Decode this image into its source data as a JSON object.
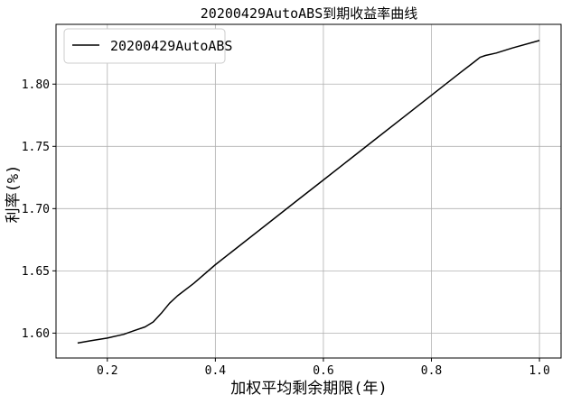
{
  "chart_data": {
    "type": "line",
    "title": "20200429AutoABS到期收益率曲线",
    "xlabel": "加权平均剩余期限(年)",
    "ylabel": "利率(%)",
    "xlim": [
      0.105,
      1.04
    ],
    "ylim": [
      1.58,
      1.848
    ],
    "xticks": [
      {
        "value": 0.2,
        "label": "0.2"
      },
      {
        "value": 0.4,
        "label": "0.4"
      },
      {
        "value": 0.6,
        "label": "0.6"
      },
      {
        "value": 0.8,
        "label": "0.8"
      },
      {
        "value": 1.0,
        "label": "1.0"
      }
    ],
    "yticks": [
      {
        "value": 1.6,
        "label": "1.60"
      },
      {
        "value": 1.65,
        "label": "1.65"
      },
      {
        "value": 1.7,
        "label": "1.70"
      },
      {
        "value": 1.75,
        "label": "1.75"
      },
      {
        "value": 1.8,
        "label": "1.80"
      }
    ],
    "grid": true,
    "legend_position": "top-left",
    "series": [
      {
        "name": "20200429AutoABS",
        "color": "#000000",
        "x": [
          0.145,
          0.17,
          0.2,
          0.23,
          0.25,
          0.27,
          0.285,
          0.3,
          0.315,
          0.33,
          0.36,
          0.4,
          0.45,
          0.5,
          0.55,
          0.6,
          0.65,
          0.7,
          0.75,
          0.8,
          0.85,
          0.88,
          0.89,
          0.9,
          0.92,
          0.95,
          1.0
        ],
        "values": [
          1.592,
          1.594,
          1.596,
          1.599,
          1.602,
          1.605,
          1.609,
          1.616,
          1.624,
          1.63,
          1.64,
          1.655,
          1.672,
          1.689,
          1.706,
          1.723,
          1.74,
          1.757,
          1.774,
          1.791,
          1.808,
          1.818,
          1.8215,
          1.823,
          1.825,
          1.829,
          1.835
        ]
      }
    ]
  }
}
